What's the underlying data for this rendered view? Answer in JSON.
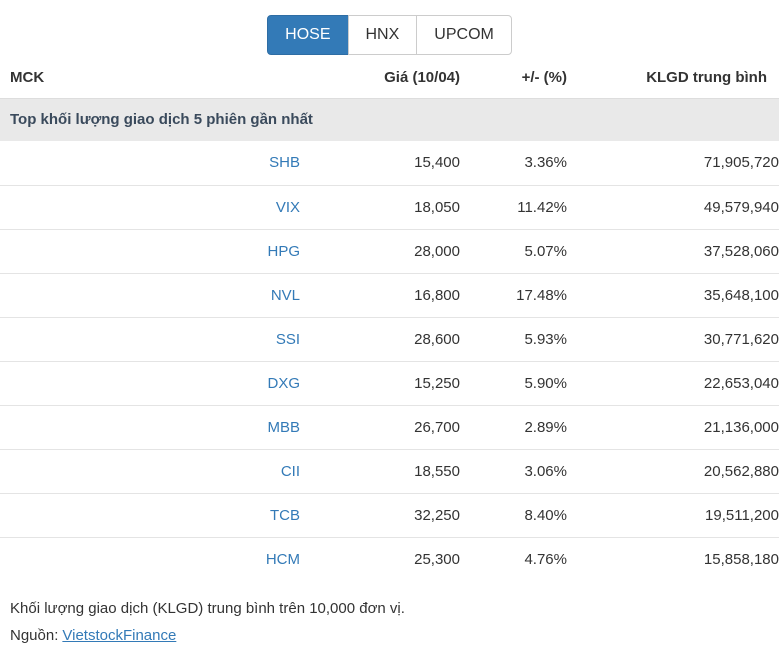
{
  "tabs": [
    {
      "label": "HOSE",
      "active": true
    },
    {
      "label": "HNX",
      "active": false
    },
    {
      "label": "UPCOM",
      "active": false
    }
  ],
  "table": {
    "columns": [
      "MCK",
      "Giá (10/04)",
      "+/- (%)",
      "KLGD trung bình"
    ],
    "section_title": "Top khối lượng giao dịch 5 phiên gần nhất",
    "rows": [
      {
        "ticker": "SHB",
        "price": "15,400",
        "change": "3.36%",
        "volume": "71,905,720"
      },
      {
        "ticker": "VIX",
        "price": "18,050",
        "change": "11.42%",
        "volume": "49,579,940"
      },
      {
        "ticker": "HPG",
        "price": "28,000",
        "change": "5.07%",
        "volume": "37,528,060"
      },
      {
        "ticker": "NVL",
        "price": "16,800",
        "change": "17.48%",
        "volume": "35,648,100"
      },
      {
        "ticker": "SSI",
        "price": "28,600",
        "change": "5.93%",
        "volume": "30,771,620"
      },
      {
        "ticker": "DXG",
        "price": "15,250",
        "change": "5.90%",
        "volume": "22,653,040"
      },
      {
        "ticker": "MBB",
        "price": "26,700",
        "change": "2.89%",
        "volume": "21,136,000"
      },
      {
        "ticker": "CII",
        "price": "18,550",
        "change": "3.06%",
        "volume": "20,562,880"
      },
      {
        "ticker": "TCB",
        "price": "32,250",
        "change": "8.40%",
        "volume": "19,511,200"
      },
      {
        "ticker": "HCM",
        "price": "25,300",
        "change": "4.76%",
        "volume": "15,858,180"
      }
    ]
  },
  "footer": {
    "note": "Khối lượng giao dịch (KLGD) trung bình trên 10,000 đơn vị.",
    "source_label": "Nguồn:",
    "source_link": "VietstockFinance"
  },
  "colors": {
    "accent": "#337ab7",
    "link": "#337ab7",
    "positive_change": "#28a028",
    "section_band_bg": "#e9e9e9",
    "text": "#333333"
  }
}
